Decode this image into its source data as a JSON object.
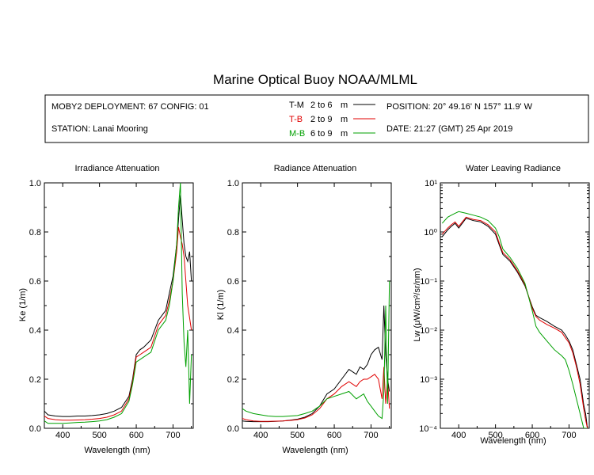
{
  "title": "Marine Optical Buoy NOAA/MLML",
  "info": {
    "deployment": "MOBY2 DEPLOYMENT: 67 CONFIG: 01",
    "station": "STATION: Lanai Mooring",
    "position": "POSITION: 20° 49.16' N   157° 11.9' W",
    "date": "DATE: 21:27 (GMT) 25 Apr 2019"
  },
  "legend": [
    {
      "code": "T-M",
      "range": "2 to 6",
      "unit": "m",
      "color": "#000000"
    },
    {
      "code": "T-B",
      "range": "2 to 9",
      "unit": "m",
      "color": "#e00000"
    },
    {
      "code": "M-B",
      "range": "6 to 9",
      "unit": "m",
      "color": "#00a000"
    }
  ],
  "colors": {
    "T-M": "#000000",
    "T-B": "#e00000",
    "M-B": "#00a000"
  },
  "chart_data": [
    {
      "type": "line",
      "title": "Irradiance Attenuation",
      "xlabel": "Wavelength (nm)",
      "ylabel": "Ke  (1/m)",
      "xlim": [
        350,
        755
      ],
      "ylim": [
        0,
        1
      ],
      "xticks": [
        400,
        500,
        600,
        700
      ],
      "yticks": [
        0.0,
        0.2,
        0.4,
        0.6,
        0.8,
        1.0
      ],
      "ytick_labels": [
        "0.0",
        "0.2",
        "0.4",
        "0.6",
        "0.8",
        "1.0"
      ],
      "log": false,
      "series": [
        {
          "name": "T-M",
          "color": "#000000",
          "x": [
            350,
            360,
            380,
            400,
            420,
            440,
            460,
            480,
            500,
            520,
            540,
            560,
            580,
            590,
            600,
            610,
            620,
            640,
            660,
            670,
            680,
            690,
            700,
            710,
            715,
            720,
            725,
            730,
            735,
            740,
            745,
            750
          ],
          "y": [
            0.07,
            0.055,
            0.05,
            0.048,
            0.048,
            0.05,
            0.05,
            0.052,
            0.055,
            0.06,
            0.07,
            0.085,
            0.13,
            0.2,
            0.3,
            0.32,
            0.33,
            0.36,
            0.44,
            0.46,
            0.48,
            0.55,
            0.62,
            0.75,
            0.85,
            0.95,
            0.85,
            0.75,
            0.7,
            0.68,
            0.72,
            0.6
          ]
        },
        {
          "name": "T-B",
          "color": "#e00000",
          "x": [
            350,
            360,
            380,
            400,
            420,
            440,
            460,
            480,
            500,
            520,
            540,
            560,
            580,
            590,
            600,
            610,
            620,
            640,
            660,
            670,
            680,
            690,
            700,
            710,
            715,
            720,
            725,
            730,
            735,
            740,
            745,
            750
          ],
          "y": [
            0.05,
            0.04,
            0.035,
            0.033,
            0.033,
            0.034,
            0.035,
            0.037,
            0.04,
            0.045,
            0.055,
            0.07,
            0.12,
            0.19,
            0.29,
            0.3,
            0.31,
            0.33,
            0.42,
            0.44,
            0.46,
            0.52,
            0.6,
            0.72,
            0.82,
            0.78,
            0.75,
            0.7,
            0.6,
            0.5,
            0.45,
            0.4
          ]
        },
        {
          "name": "M-B",
          "color": "#00a000",
          "x": [
            350,
            360,
            380,
            400,
            420,
            440,
            460,
            480,
            500,
            520,
            540,
            560,
            580,
            590,
            600,
            610,
            620,
            640,
            660,
            670,
            680,
            690,
            700,
            710,
            715,
            720,
            725,
            730,
            735,
            740,
            745,
            750
          ],
          "y": [
            0.03,
            0.02,
            0.02,
            0.02,
            0.022,
            0.024,
            0.025,
            0.027,
            0.03,
            0.035,
            0.045,
            0.06,
            0.11,
            0.18,
            0.27,
            0.28,
            0.29,
            0.31,
            0.4,
            0.42,
            0.44,
            0.5,
            0.6,
            0.75,
            0.9,
            1.0,
            0.55,
            0.35,
            0.25,
            0.4,
            0.1,
            0.3
          ]
        }
      ]
    },
    {
      "type": "line",
      "title": "Radiance Attenuation",
      "xlabel": "Wavelength (nm)",
      "ylabel": "Kl  (1/m)",
      "xlim": [
        350,
        755
      ],
      "ylim": [
        0,
        1
      ],
      "xticks": [
        400,
        500,
        600,
        700
      ],
      "yticks": [
        0.0,
        0.2,
        0.4,
        0.6,
        0.8,
        1.0
      ],
      "ytick_labels": [
        "0.0",
        "0.2",
        "0.4",
        "0.6",
        "0.8",
        "1.0"
      ],
      "log": false,
      "series": [
        {
          "name": "T-M",
          "color": "#000000",
          "x": [
            350,
            360,
            380,
            400,
            420,
            440,
            460,
            480,
            500,
            520,
            540,
            560,
            580,
            600,
            620,
            640,
            660,
            670,
            680,
            690,
            700,
            710,
            720,
            730,
            735,
            740,
            745,
            750
          ],
          "y": [
            0.03,
            0.028,
            0.027,
            0.027,
            0.027,
            0.028,
            0.03,
            0.033,
            0.037,
            0.045,
            0.06,
            0.09,
            0.14,
            0.16,
            0.2,
            0.24,
            0.22,
            0.25,
            0.24,
            0.26,
            0.3,
            0.32,
            0.33,
            0.28,
            0.5,
            0.3,
            0.2,
            0.15
          ]
        },
        {
          "name": "T-B",
          "color": "#e00000",
          "x": [
            350,
            360,
            380,
            400,
            420,
            440,
            460,
            480,
            500,
            520,
            540,
            560,
            580,
            600,
            620,
            640,
            660,
            670,
            680,
            690,
            700,
            710,
            720,
            730,
            735,
            740,
            745,
            750
          ],
          "y": [
            0.04,
            0.035,
            0.03,
            0.028,
            0.028,
            0.029,
            0.03,
            0.032,
            0.035,
            0.042,
            0.055,
            0.08,
            0.12,
            0.14,
            0.17,
            0.19,
            0.17,
            0.19,
            0.2,
            0.2,
            0.21,
            0.22,
            0.2,
            0.12,
            0.25,
            0.1,
            0.2,
            0.08
          ]
        },
        {
          "name": "M-B",
          "color": "#00a000",
          "x": [
            350,
            360,
            380,
            400,
            420,
            440,
            460,
            480,
            500,
            520,
            540,
            560,
            580,
            600,
            620,
            640,
            660,
            670,
            680,
            690,
            700,
            710,
            720,
            730,
            735,
            740,
            745,
            750
          ],
          "y": [
            0.08,
            0.07,
            0.06,
            0.055,
            0.05,
            0.048,
            0.048,
            0.05,
            0.052,
            0.06,
            0.07,
            0.09,
            0.12,
            0.13,
            0.14,
            0.15,
            0.12,
            0.13,
            0.14,
            0.11,
            0.09,
            0.07,
            0.05,
            0.04,
            0.15,
            0.5,
            0.1,
            0.6
          ]
        }
      ]
    },
    {
      "type": "line",
      "title": "Water Leaving Radiance",
      "xlabel": "Wavelength (nm)",
      "ylabel": "Lw  (μW/cm²/sr/nm)",
      "xlim": [
        350,
        755
      ],
      "ylim": [
        0.0001,
        10
      ],
      "xticks": [
        400,
        500,
        600,
        700
      ],
      "yticks": [
        0.0001,
        0.001,
        0.01,
        0.1,
        1,
        10
      ],
      "ytick_labels": [
        "10⁻⁴",
        "10⁻³",
        "10⁻²",
        "10⁻¹",
        "10⁰",
        "10¹"
      ],
      "log": true,
      "series": [
        {
          "name": "T-M",
          "color": "#000000",
          "x": [
            355,
            370,
            380,
            390,
            400,
            420,
            440,
            460,
            480,
            500,
            510,
            520,
            540,
            560,
            580,
            600,
            610,
            620,
            640,
            660,
            680,
            690,
            700,
            710,
            720,
            730,
            740,
            745,
            750
          ],
          "y": [
            0.8,
            1.1,
            1.3,
            1.5,
            1.2,
            1.9,
            1.7,
            1.6,
            1.3,
            0.9,
            0.55,
            0.35,
            0.25,
            0.15,
            0.08,
            0.03,
            0.02,
            0.018,
            0.015,
            0.012,
            0.01,
            0.008,
            0.006,
            0.004,
            0.002,
            0.001,
            0.0003,
            0.0002,
            0.0001
          ]
        },
        {
          "name": "T-B",
          "color": "#e00000",
          "x": [
            355,
            370,
            380,
            390,
            400,
            420,
            440,
            460,
            480,
            500,
            510,
            520,
            540,
            560,
            580,
            600,
            610,
            620,
            640,
            660,
            680,
            690,
            700,
            710,
            720,
            730,
            740,
            745,
            750
          ],
          "y": [
            0.9,
            1.2,
            1.4,
            1.6,
            1.3,
            2.0,
            1.8,
            1.7,
            1.4,
            1.0,
            0.6,
            0.38,
            0.27,
            0.16,
            0.085,
            0.028,
            0.019,
            0.016,
            0.013,
            0.011,
            0.009,
            0.007,
            0.0055,
            0.0035,
            0.0018,
            0.0008,
            0.00025,
            0.00015,
            0.0001
          ]
        },
        {
          "name": "M-B",
          "color": "#00a000",
          "x": [
            355,
            370,
            380,
            390,
            400,
            420,
            440,
            460,
            480,
            500,
            510,
            520,
            540,
            560,
            580,
            600,
            610,
            620,
            640,
            660,
            680,
            690,
            700,
            710,
            720,
            730,
            740,
            745,
            750
          ],
          "y": [
            1.5,
            2.0,
            2.2,
            2.4,
            2.6,
            2.4,
            2.2,
            2.0,
            1.7,
            1.2,
            0.8,
            0.45,
            0.3,
            0.18,
            0.09,
            0.025,
            0.012,
            0.009,
            0.006,
            0.004,
            0.003,
            0.0025,
            0.0015,
            0.0008,
            0.0004,
            0.0002,
            0.0001,
            0.0001,
            0.0001
          ]
        }
      ]
    }
  ]
}
